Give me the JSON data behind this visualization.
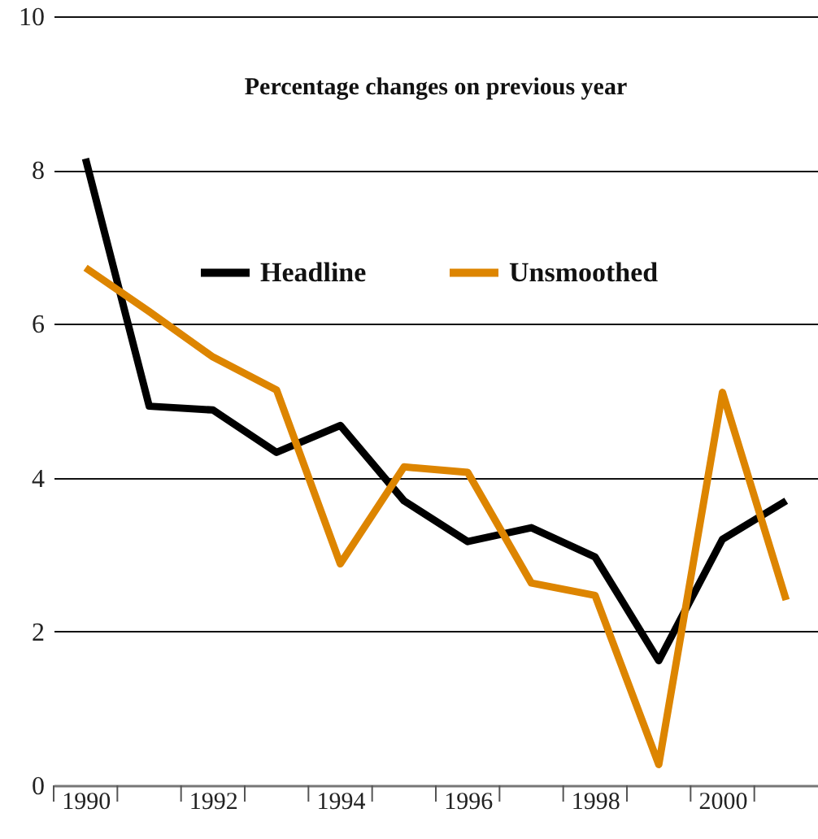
{
  "chart_data": {
    "type": "line",
    "title": "Percentage changes on previous year",
    "x": [
      1990,
      1991,
      1992,
      1993,
      1994,
      1995,
      1996,
      1997,
      1998,
      1999,
      2000,
      2001
    ],
    "series": [
      {
        "name": "Headline",
        "color": "#000000",
        "values": [
          8.15,
          4.93,
          4.88,
          4.33,
          4.68,
          3.7,
          3.17,
          3.35,
          2.97,
          1.62,
          3.2,
          3.7
        ]
      },
      {
        "name": "Unsmoothed",
        "color": "#dd8500",
        "values": [
          6.73,
          6.16,
          5.57,
          5.14,
          2.88,
          4.14,
          4.07,
          2.63,
          2.47,
          0.27,
          5.11,
          2.41
        ]
      }
    ],
    "xlim": [
      1989.5,
      2001.5
    ],
    "xticks": [
      {
        "value": 1989.5,
        "label": null
      },
      1990,
      {
        "value": 1990.5,
        "label": null
      },
      {
        "value": 1991.5,
        "label": null
      },
      1992,
      {
        "value": 1992.5,
        "label": null
      },
      {
        "value": 1993.5,
        "label": null
      },
      1994,
      {
        "value": 1994.5,
        "label": null
      },
      {
        "value": 1995.5,
        "label": null
      },
      1996,
      {
        "value": 1996.5,
        "label": null
      },
      {
        "value": 1997.5,
        "label": null
      },
      1998,
      {
        "value": 1998.5,
        "label": null
      },
      {
        "value": 1999.5,
        "label": null
      },
      2000,
      {
        "value": 2000.5,
        "label": null
      }
    ],
    "ylim": [
      0,
      10
    ],
    "yticks": [
      0,
      2,
      4,
      6,
      8,
      10
    ],
    "grid": "y",
    "legend": "top",
    "line_style": "solid"
  }
}
